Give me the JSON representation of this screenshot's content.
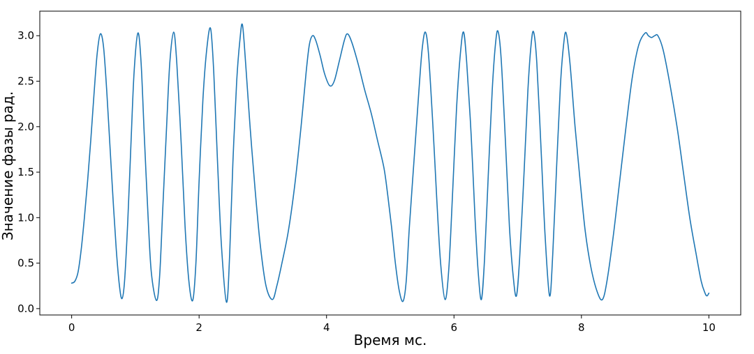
{
  "chart_data": {
    "type": "line",
    "title": "",
    "xlabel": "Время мс.",
    "ylabel": "Значение фазы рад.",
    "xlim": [
      -0.5,
      10.5
    ],
    "ylim": [
      -0.07,
      3.27
    ],
    "grid": false,
    "legend": "none",
    "x_ticks": [
      0,
      2,
      4,
      6,
      8,
      10
    ],
    "x_tick_labels": [
      "0",
      "2",
      "4",
      "6",
      "8",
      "10"
    ],
    "y_ticks": [
      0.0,
      0.5,
      1.0,
      1.5,
      2.0,
      2.5,
      3.0
    ],
    "y_tick_labels": [
      "0.0",
      "0.5",
      "1.0",
      "1.5",
      "2.0",
      "2.5",
      "3.0"
    ],
    "series": [
      {
        "color": "#1f77b4",
        "points": [
          [
            0.0,
            0.28
          ],
          [
            0.05,
            0.3
          ],
          [
            0.1,
            0.4
          ],
          [
            0.15,
            0.65
          ],
          [
            0.2,
            1.0
          ],
          [
            0.25,
            1.4
          ],
          [
            0.3,
            1.85
          ],
          [
            0.35,
            2.35
          ],
          [
            0.4,
            2.8
          ],
          [
            0.45,
            3.02
          ],
          [
            0.5,
            2.88
          ],
          [
            0.55,
            2.4
          ],
          [
            0.6,
            1.8
          ],
          [
            0.65,
            1.2
          ],
          [
            0.7,
            0.65
          ],
          [
            0.75,
            0.25
          ],
          [
            0.79,
            0.11
          ],
          [
            0.83,
            0.3
          ],
          [
            0.88,
            0.95
          ],
          [
            0.93,
            1.8
          ],
          [
            0.98,
            2.6
          ],
          [
            1.04,
            3.03
          ],
          [
            1.09,
            2.7
          ],
          [
            1.14,
            1.9
          ],
          [
            1.2,
            1.0
          ],
          [
            1.25,
            0.4
          ],
          [
            1.33,
            0.09
          ],
          [
            1.38,
            0.35
          ],
          [
            1.43,
            1.1
          ],
          [
            1.49,
            2.0
          ],
          [
            1.54,
            2.7
          ],
          [
            1.6,
            3.04
          ],
          [
            1.65,
            2.7
          ],
          [
            1.72,
            1.8
          ],
          [
            1.78,
            0.9
          ],
          [
            1.84,
            0.3
          ],
          [
            1.9,
            0.09
          ],
          [
            1.95,
            0.5
          ],
          [
            2.0,
            1.4
          ],
          [
            2.06,
            2.3
          ],
          [
            2.12,
            2.85
          ],
          [
            2.18,
            3.08
          ],
          [
            2.23,
            2.6
          ],
          [
            2.29,
            1.6
          ],
          [
            2.35,
            0.7
          ],
          [
            2.43,
            0.07
          ],
          [
            2.48,
            0.6
          ],
          [
            2.53,
            1.6
          ],
          [
            2.59,
            2.5
          ],
          [
            2.64,
            2.95
          ],
          [
            2.68,
            3.12
          ],
          [
            2.73,
            2.7
          ],
          [
            2.8,
            2.0
          ],
          [
            2.88,
            1.3
          ],
          [
            2.96,
            0.7
          ],
          [
            3.05,
            0.25
          ],
          [
            3.15,
            0.1
          ],
          [
            3.22,
            0.25
          ],
          [
            3.3,
            0.5
          ],
          [
            3.4,
            0.85
          ],
          [
            3.5,
            1.35
          ],
          [
            3.6,
            2.0
          ],
          [
            3.68,
            2.6
          ],
          [
            3.73,
            2.9
          ],
          [
            3.78,
            3.0
          ],
          [
            3.83,
            2.95
          ],
          [
            3.9,
            2.78
          ],
          [
            3.97,
            2.58
          ],
          [
            4.05,
            2.45
          ],
          [
            4.12,
            2.5
          ],
          [
            4.2,
            2.72
          ],
          [
            4.28,
            2.95
          ],
          [
            4.33,
            3.02
          ],
          [
            4.4,
            2.92
          ],
          [
            4.5,
            2.68
          ],
          [
            4.6,
            2.4
          ],
          [
            4.7,
            2.15
          ],
          [
            4.8,
            1.85
          ],
          [
            4.9,
            1.55
          ],
          [
            4.96,
            1.25
          ],
          [
            5.02,
            0.9
          ],
          [
            5.08,
            0.5
          ],
          [
            5.14,
            0.2
          ],
          [
            5.2,
            0.08
          ],
          [
            5.25,
            0.3
          ],
          [
            5.3,
            0.9
          ],
          [
            5.38,
            1.7
          ],
          [
            5.45,
            2.4
          ],
          [
            5.5,
            2.85
          ],
          [
            5.55,
            3.04
          ],
          [
            5.6,
            2.8
          ],
          [
            5.67,
            2.0
          ],
          [
            5.73,
            1.2
          ],
          [
            5.79,
            0.5
          ],
          [
            5.86,
            0.1
          ],
          [
            5.92,
            0.45
          ],
          [
            5.98,
            1.3
          ],
          [
            6.04,
            2.2
          ],
          [
            6.1,
            2.8
          ],
          [
            6.15,
            3.04
          ],
          [
            6.2,
            2.7
          ],
          [
            6.27,
            1.9
          ],
          [
            6.33,
            1.0
          ],
          [
            6.38,
            0.4
          ],
          [
            6.43,
            0.1
          ],
          [
            6.48,
            0.55
          ],
          [
            6.54,
            1.5
          ],
          [
            6.6,
            2.4
          ],
          [
            6.65,
            2.9
          ],
          [
            6.69,
            3.05
          ],
          [
            6.74,
            2.75
          ],
          [
            6.81,
            1.8
          ],
          [
            6.87,
            0.9
          ],
          [
            6.93,
            0.35
          ],
          [
            6.98,
            0.14
          ],
          [
            7.03,
            0.55
          ],
          [
            7.1,
            1.5
          ],
          [
            7.16,
            2.4
          ],
          [
            7.21,
            2.9
          ],
          [
            7.25,
            3.04
          ],
          [
            7.3,
            2.7
          ],
          [
            7.37,
            1.7
          ],
          [
            7.43,
            0.8
          ],
          [
            7.5,
            0.14
          ],
          [
            7.55,
            0.6
          ],
          [
            7.61,
            1.55
          ],
          [
            7.67,
            2.45
          ],
          [
            7.72,
            2.9
          ],
          [
            7.76,
            3.03
          ],
          [
            7.82,
            2.7
          ],
          [
            7.9,
            2.0
          ],
          [
            7.98,
            1.4
          ],
          [
            8.06,
            0.85
          ],
          [
            8.15,
            0.45
          ],
          [
            8.25,
            0.18
          ],
          [
            8.33,
            0.1
          ],
          [
            8.4,
            0.3
          ],
          [
            8.5,
            0.8
          ],
          [
            8.6,
            1.4
          ],
          [
            8.7,
            2.0
          ],
          [
            8.8,
            2.55
          ],
          [
            8.9,
            2.9
          ],
          [
            9.0,
            3.03
          ],
          [
            9.05,
            3.0
          ],
          [
            9.1,
            2.98
          ],
          [
            9.15,
            3.0
          ],
          [
            9.2,
            3.0
          ],
          [
            9.28,
            2.85
          ],
          [
            9.38,
            2.5
          ],
          [
            9.5,
            2.0
          ],
          [
            9.6,
            1.5
          ],
          [
            9.7,
            1.0
          ],
          [
            9.8,
            0.6
          ],
          [
            9.88,
            0.3
          ],
          [
            9.94,
            0.17
          ],
          [
            9.97,
            0.14
          ],
          [
            10.0,
            0.17
          ]
        ]
      }
    ]
  }
}
